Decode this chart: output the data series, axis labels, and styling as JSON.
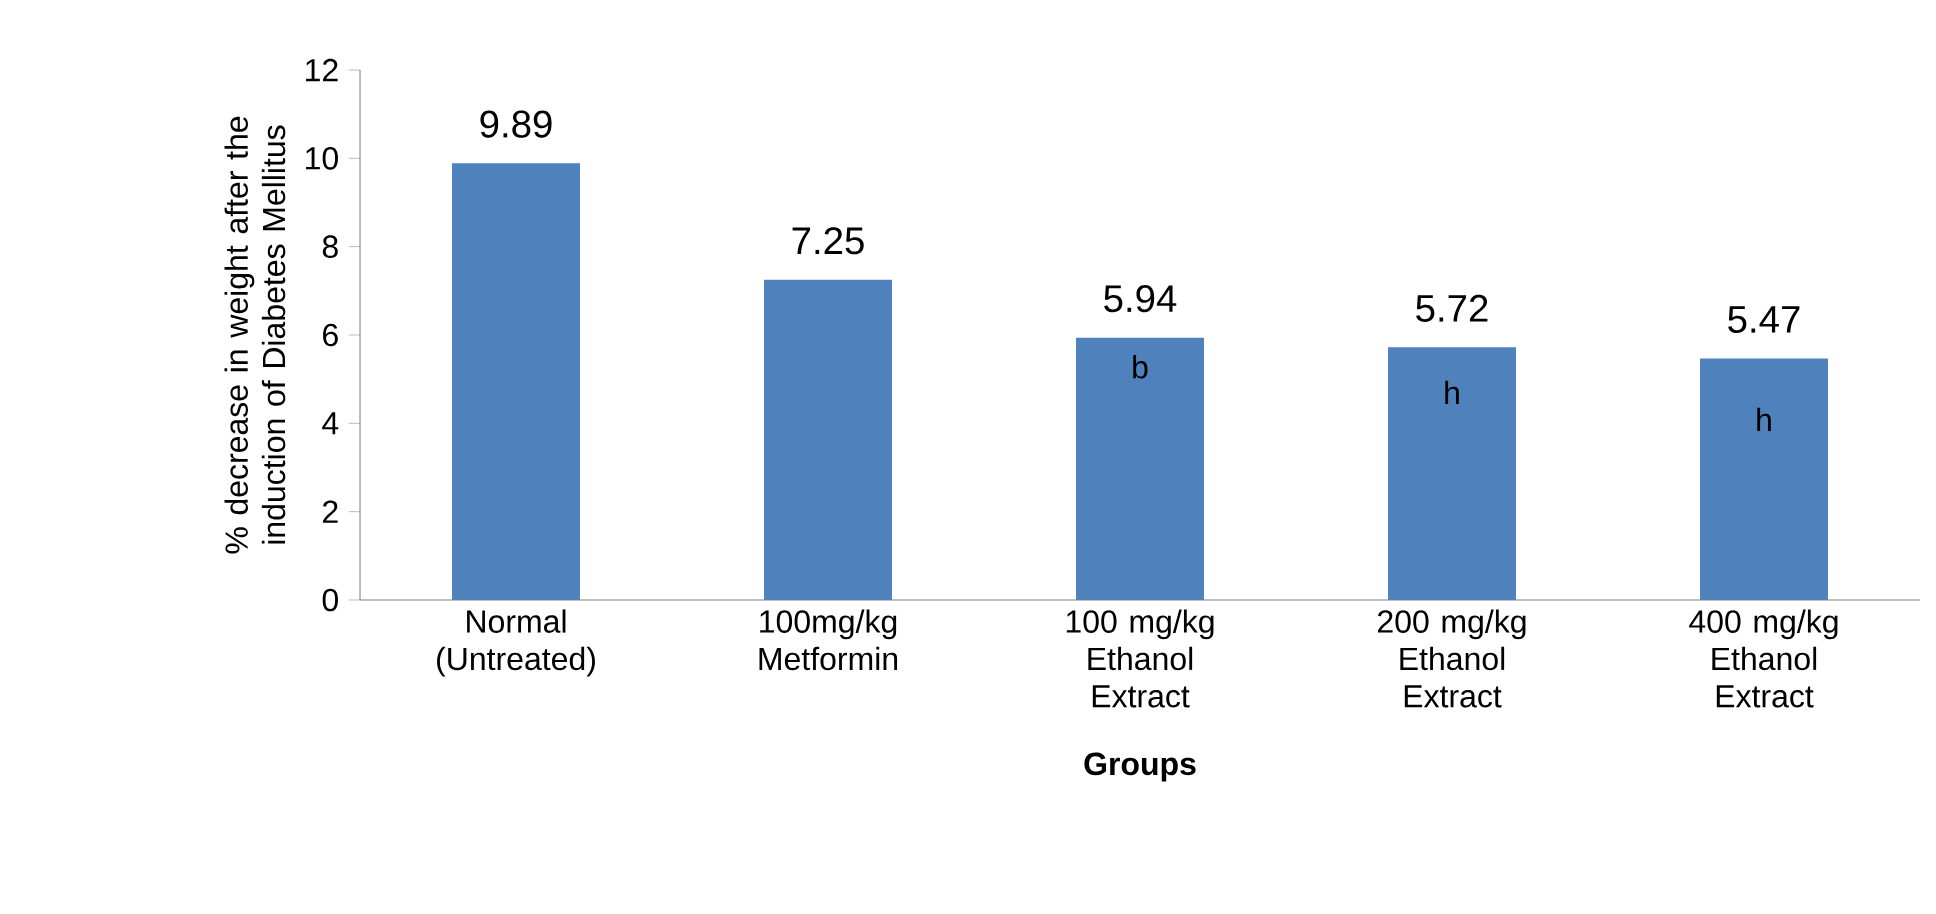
{
  "chart_data": {
    "type": "bar",
    "xlabel": "Groups",
    "ylabel": "% decrease in weight after the induction of Diabetes Mellitus",
    "categories": [
      "Normal (Untreated)",
      "100mg/kg Metformin",
      "100 mg/kg Ethanol Extract",
      "200 mg/kg Ethanol Extract",
      "400 mg/kg Ethanol Extract"
    ],
    "values": [
      9.89,
      7.25,
      5.94,
      5.72,
      5.47
    ],
    "color": "#4f81bd",
    "ylim": [
      0,
      12
    ],
    "yticks": [
      0,
      2,
      4,
      6,
      8,
      10,
      12
    ],
    "data_labels": true,
    "annotations": [
      {
        "text": "b",
        "x": "100 mg/kg Ethanol Extract",
        "y": 5.94
      },
      {
        "text": "h",
        "x": "200 mg/kg Ethanol Extract",
        "y": 5.72
      },
      {
        "text": "h",
        "x": "400 mg/kg Ethanol Extract",
        "y": 5.47
      }
    ]
  }
}
